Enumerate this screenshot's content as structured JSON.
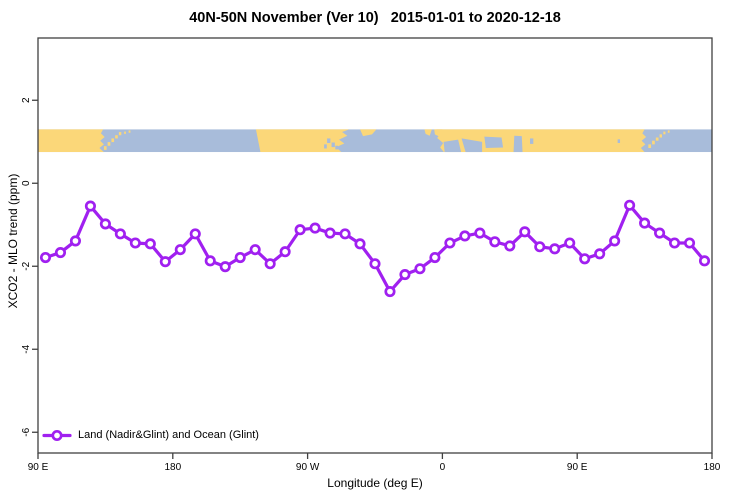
{
  "title": "40N-50N November (Ver 10)   2015-01-01 to 2020-12-18",
  "legend": {
    "label": "Land (Nadir&Glint) and Ocean (Glint)"
  },
  "chart_data": {
    "type": "line",
    "title": "40N-50N November (Ver 10)   2015-01-01 to 2020-12-18",
    "xlabel": "Longitude (deg E)",
    "ylabel": "XCO2 - MLO trend (ppm)",
    "grid": false,
    "legend_position": "bottom-left",
    "x_axis": {
      "note": "axis spans 450 degrees, from 90E eastward around the globe to 180 again",
      "range_deg": [
        90,
        540
      ],
      "ticks": [
        {
          "deg": 90,
          "label": "90 E"
        },
        {
          "deg": 180,
          "label": "180"
        },
        {
          "deg": 270,
          "label": "90 W"
        },
        {
          "deg": 360,
          "label": "0"
        },
        {
          "deg": 450,
          "label": "90 E"
        },
        {
          "deg": 540,
          "label": "180"
        }
      ]
    },
    "y_axis": {
      "range": [
        -6.5,
        3.5
      ],
      "ticks": [
        {
          "value": 2,
          "label": "2"
        },
        {
          "value": 0,
          "label": "0"
        },
        {
          "value": -2,
          "label": "-2"
        },
        {
          "value": -4,
          "label": "-4"
        },
        {
          "value": -6,
          "label": "-6"
        }
      ]
    },
    "series": [
      {
        "name": "Land (Nadir&Glint) and Ocean (Glint)",
        "color": "#a020f0",
        "marker": "open-circle",
        "lons_deg": [
          95,
          105,
          115,
          125,
          135,
          145,
          155,
          165,
          175,
          185,
          195,
          205,
          215,
          225,
          235,
          245,
          255,
          265,
          275,
          285,
          295,
          305,
          315,
          325,
          335,
          345,
          355,
          365,
          375,
          385,
          395,
          405,
          415,
          425,
          435,
          445,
          455,
          465,
          475,
          485,
          495,
          505,
          515,
          525,
          535
        ],
        "values_ppm": [
          -1.79,
          -1.67,
          -1.39,
          -0.55,
          -0.98,
          -1.22,
          -1.44,
          -1.46,
          -1.89,
          -1.6,
          -1.22,
          -1.87,
          -2.01,
          -1.79,
          -1.6,
          -1.94,
          -1.65,
          -1.12,
          -1.08,
          -1.2,
          -1.22,
          -1.46,
          -1.94,
          -2.61,
          -2.2,
          -2.06,
          -1.79,
          -1.44,
          -1.27,
          -1.2,
          -1.41,
          -1.51,
          -1.17,
          -1.53,
          -1.58,
          -1.44,
          -1.82,
          -1.7,
          -1.39,
          -0.53,
          -0.96,
          -1.2,
          -1.44,
          -1.44,
          -1.87
        ]
      }
    ],
    "map_strip": {
      "description": "world coastline strip for 40N-50N drawn across the plot",
      "value_top": 1.3,
      "value_bottom": 0.75,
      "ocean_color": "#a8bcda",
      "land_color": "#fbd779",
      "land_polygons": [
        [
          [
            90,
            0
          ],
          [
            133.5,
            0
          ],
          [
            132,
            0.18
          ],
          [
            134.5,
            0.34
          ],
          [
            131.5,
            0.5
          ],
          [
            134,
            0.66
          ],
          [
            131,
            0.82
          ],
          [
            134,
            1
          ],
          [
            90,
            1
          ]
        ],
        [
          [
            235.5,
            0
          ],
          [
            298,
            0
          ],
          [
            293,
            0.12
          ],
          [
            296.5,
            0.28
          ],
          [
            291,
            0.45
          ],
          [
            294.5,
            0.62
          ],
          [
            289,
            0.78
          ],
          [
            292.5,
            1
          ],
          [
            238.5,
            1
          ]
        ],
        [
          [
            305,
            0
          ],
          [
            316,
            0
          ],
          [
            313,
            0.22
          ],
          [
            307,
            0.3
          ]
        ],
        [
          [
            348,
            0
          ],
          [
            353,
            0
          ],
          [
            351.5,
            0.28
          ],
          [
            348.8,
            0.2
          ]
        ],
        [
          [
            354.5,
            0
          ],
          [
            360,
            0
          ],
          [
            358,
            0.32
          ],
          [
            355,
            0.22
          ]
        ],
        [
          [
            356,
            0
          ],
          [
            495,
            0
          ],
          [
            493.5,
            0.18
          ],
          [
            496,
            0.34
          ],
          [
            493,
            0.5
          ],
          [
            495.5,
            0.66
          ],
          [
            492.5,
            0.82
          ],
          [
            495,
            1
          ],
          [
            361,
            1
          ],
          [
            358.5,
            0.8
          ],
          [
            360.5,
            0.6
          ],
          [
            356.5,
            0.38
          ],
          [
            358.5,
            0.2
          ]
        ]
      ],
      "sea_overlays": [
        [
          [
            360.8,
            0.55
          ],
          [
            370.5,
            0.45
          ],
          [
            372.5,
            1
          ],
          [
            361.5,
            1
          ]
        ],
        [
          [
            372.8,
            0.4
          ],
          [
            386.5,
            0.55
          ],
          [
            386.5,
            1
          ],
          [
            375.5,
            1
          ]
        ],
        [
          [
            388,
            0.32
          ],
          [
            399.5,
            0.36
          ],
          [
            400.5,
            0.8
          ],
          [
            389,
            0.82
          ]
        ],
        [
          [
            408,
            0.28
          ],
          [
            413,
            0.3
          ],
          [
            413.5,
            1
          ],
          [
            407.5,
            1
          ]
        ]
      ],
      "land_dots": [
        [
          134,
          0.74,
          1.8,
          0.16
        ],
        [
          136.5,
          0.56,
          1.8,
          0.16
        ],
        [
          139,
          0.4,
          1.8,
          0.16
        ],
        [
          141.5,
          0.26,
          1.8,
          0.14
        ],
        [
          144,
          0.12,
          1.6,
          0.14
        ],
        [
          147.5,
          0.1,
          1.2,
          0.1
        ],
        [
          150.5,
          0.05,
          1.2,
          0.1
        ],
        [
          497.5,
          0.66,
          1.8,
          0.16
        ],
        [
          500,
          0.5,
          1.8,
          0.16
        ],
        [
          502.5,
          0.36,
          1.8,
          0.14
        ],
        [
          505,
          0.22,
          1.6,
          0.14
        ],
        [
          507.5,
          0.1,
          1.4,
          0.12
        ],
        [
          510.5,
          0.05,
          1.2,
          0.1
        ]
      ],
      "sea_dots": [
        [
          283,
          0.4,
          2.2,
          0.2
        ],
        [
          286,
          0.58,
          2.2,
          0.2
        ],
        [
          281,
          0.66,
          1.8,
          0.18
        ],
        [
          288.5,
          0.72,
          1.8,
          0.16
        ],
        [
          418.5,
          0.4,
          2.2,
          0.24
        ],
        [
          477,
          0.44,
          1.6,
          0.16
        ]
      ]
    },
    "colors": {
      "series_line": "#a020f0",
      "marker_fill": "#ffffff",
      "axis_box": "#404040",
      "land": "#fbd779",
      "ocean": "#a8bcda"
    }
  }
}
